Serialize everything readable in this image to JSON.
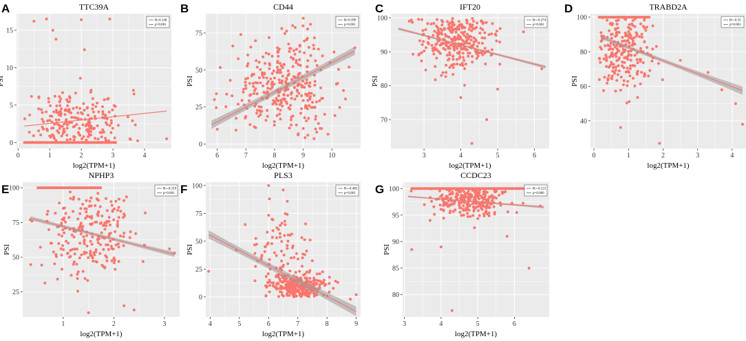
{
  "figure": {
    "x_axis_label": "log2(TPM+1)",
    "y_axis_label": "PSI",
    "legend_r_prefix": "R=",
    "legend_p_prefix": "p="
  },
  "colors": {
    "panel_bg": "#ebebeb",
    "grid": "#ffffff",
    "point": "#f8766d",
    "fit_line": "#f8766d",
    "ci_band": "#999999"
  },
  "chart_data": [
    {
      "label": "A",
      "title": "TTC39A",
      "type": "scatter",
      "xlabel": "log2(TPM+1)",
      "ylabel": "PSI",
      "xlim": [
        -0.05,
        4.85
      ],
      "ylim": [
        -0.8,
        17.2
      ],
      "xticks": [
        0,
        1,
        2,
        3,
        4
      ],
      "yticks": [
        0,
        5,
        10,
        15
      ],
      "legend": {
        "R": "0.146",
        "p": "0.001"
      },
      "fit": {
        "x": [
          0.2,
          4.7
        ],
        "y": [
          2.2,
          4.2
        ],
        "band_start": 0.6,
        "band_end": 0.6
      },
      "zero_row": {
        "y": 0,
        "x_from": 0.2,
        "x_to": 3.1
      },
      "cloud": {
        "cx": 1.8,
        "sx": 0.8,
        "cy": 2.6,
        "sy": 2.2,
        "n": 220,
        "xmin": 0.2,
        "xmax": 4.7,
        "ymin": 0.2,
        "ymax": 16.5,
        "seed": 11
      },
      "outliers": [
        [
          0.5,
          16.2
        ],
        [
          0.9,
          16.5
        ],
        [
          2.0,
          16.4
        ],
        [
          2.9,
          16.5
        ],
        [
          1.1,
          15.0
        ],
        [
          1.2,
          13.8
        ],
        [
          2.1,
          12.4
        ],
        [
          4.7,
          0.5
        ]
      ]
    },
    {
      "label": "B",
      "title": "CD44",
      "type": "scatter",
      "xlabel": "log2(TPM+1)",
      "ylabel": "PSI",
      "xlim": [
        5.6,
        11.0
      ],
      "ylim": [
        -3,
        88
      ],
      "xticks": [
        6,
        7,
        8,
        9,
        10
      ],
      "yticks": [
        0,
        25,
        50,
        75
      ],
      "legend": {
        "R": "0.399",
        "p": "0.001"
      },
      "fit": {
        "x": [
          5.8,
          10.8
        ],
        "y": [
          13,
          63
        ],
        "band_start": 6,
        "band_end": 6
      },
      "zero_row": null,
      "cloud": {
        "cx": 8.3,
        "sx": 0.85,
        "cy": 38,
        "sy": 17,
        "n": 330,
        "xmin": 5.8,
        "xmax": 10.8,
        "ymin": 0,
        "ymax": 85,
        "seed": 22
      },
      "outliers": [
        [
          9.0,
          85
        ],
        [
          6.0,
          10
        ],
        [
          10.8,
          65
        ],
        [
          10.6,
          52
        ],
        [
          5.9,
          30
        ]
      ]
    },
    {
      "label": "C",
      "title": "IFT20",
      "type": "scatter",
      "xlabel": "log2(TPM+1)",
      "ylabel": "PSI",
      "xlim": [
        2.1,
        6.4
      ],
      "ylim": [
        61.5,
        101.2
      ],
      "xticks": [
        3,
        4,
        5,
        6
      ],
      "yticks": [
        70,
        80,
        90,
        100
      ],
      "legend": {
        "R": "-0.274",
        "p": "0.001"
      },
      "fit": {
        "x": [
          2.3,
          6.3
        ],
        "y": [
          96.8,
          85.5
        ],
        "band_start": 1.8,
        "band_end": 2.3
      },
      "zero_row": null,
      "cloud": {
        "cx": 3.9,
        "sx": 0.5,
        "cy": 94,
        "sy": 4.5,
        "n": 300,
        "xmin": 2.3,
        "xmax": 6.2,
        "ymin": 75,
        "ymax": 100,
        "seed": 33
      },
      "outliers": [
        [
          4.3,
          63
        ],
        [
          4.7,
          70
        ],
        [
          2.6,
          99
        ],
        [
          6.2,
          85
        ],
        [
          4.0,
          76.5
        ],
        [
          5.0,
          79
        ]
      ]
    },
    {
      "label": "D",
      "title": "TRABD2A",
      "type": "scatter",
      "xlabel": "log2(TPM+1)",
      "ylabel": "PSI",
      "xlim": [
        -0.1,
        4.4
      ],
      "ylim": [
        24,
        102
      ],
      "xticks": [
        0,
        1,
        2,
        3,
        4
      ],
      "yticks": [
        40,
        60,
        80,
        100
      ],
      "legend": {
        "R": "-0.35",
        "p": "0.001"
      },
      "fit": {
        "x": [
          0.2,
          4.3
        ],
        "y": [
          88.5,
          57.5
        ],
        "band_start": 3,
        "band_end": 6
      },
      "zero_row": {
        "y": 100,
        "x_from": 0.15,
        "x_to": 1.6
      },
      "cloud": {
        "cx": 0.8,
        "sx": 0.5,
        "cy": 82,
        "sy": 14,
        "n": 230,
        "xmin": 0.15,
        "xmax": 4.3,
        "ymin": 35,
        "ymax": 100,
        "seed": 44
      },
      "outliers": [
        [
          1.9,
          27
        ],
        [
          4.3,
          38
        ],
        [
          3.3,
          68
        ],
        [
          3.7,
          58
        ],
        [
          2.5,
          75
        ],
        [
          4.1,
          50
        ]
      ]
    },
    {
      "label": "E",
      "title": "NPHP3",
      "type": "scatter",
      "xlabel": "log2(TPM+1)",
      "ylabel": "PSI",
      "xlim": [
        0.2,
        3.3
      ],
      "ylim": [
        7,
        104
      ],
      "xticks": [
        1,
        2,
        3
      ],
      "yticks": [
        25,
        50,
        75,
        100
      ],
      "legend": {
        "R": "-0.319",
        "p": "0.001"
      },
      "fit": {
        "x": [
          0.35,
          3.2
        ],
        "y": [
          78,
          52
        ],
        "band_start": 3,
        "band_end": 3.5
      },
      "zero_row": {
        "y": 100,
        "x_from": 0.5,
        "x_to": 1.75
      },
      "cloud": {
        "cx": 1.5,
        "sx": 0.45,
        "cy": 68,
        "sy": 16,
        "n": 240,
        "xmin": 0.35,
        "xmax": 3.2,
        "ymin": 10,
        "ymax": 99,
        "seed": 55
      },
      "outliers": [
        [
          1.5,
          10
        ],
        [
          2.4,
          12
        ],
        [
          2.2,
          15
        ],
        [
          3.2,
          53
        ],
        [
          3.1,
          56
        ],
        [
          0.35,
          77
        ]
      ]
    },
    {
      "label": "F",
      "title": "PLS3",
      "type": "scatter",
      "xlabel": "log2(TPM+1)",
      "ylabel": "PSI",
      "xlim": [
        3.85,
        9.15
      ],
      "ylim": [
        -18,
        103
      ],
      "xticks": [
        4,
        5,
        6,
        7,
        8,
        9
      ],
      "yticks": [
        0,
        25,
        50,
        75,
        100
      ],
      "legend": {
        "R": "-0.485",
        "p": "0.001"
      },
      "fit": {
        "x": [
          3.95,
          9.0
        ],
        "y": [
          56,
          -13
        ],
        "band_start": 6,
        "band_end": 7
      },
      "zero_row": null,
      "cloud": {
        "cx": 7.0,
        "sx": 0.45,
        "cy": 8,
        "sy": 6,
        "n": 280,
        "xmin": 5.6,
        "xmax": 8.9,
        "ymin": 0,
        "ymax": 35,
        "seed": 66
      },
      "cloud2": {
        "cx": 6.4,
        "sx": 0.5,
        "cy": 35,
        "sy": 20,
        "n": 90,
        "xmin": 5.0,
        "xmax": 8.3,
        "ymin": 5,
        "ymax": 100,
        "seed": 67
      },
      "outliers": [
        [
          3.95,
          23
        ],
        [
          4.9,
          42
        ],
        [
          5.2,
          65
        ],
        [
          6.0,
          100
        ],
        [
          6.5,
          96
        ],
        [
          9.0,
          2
        ],
        [
          8.8,
          -2
        ]
      ]
    },
    {
      "label": "G",
      "title": "CCDC23",
      "type": "scatter",
      "xlabel": "log2(TPM+1)",
      "ylabel": "PSI",
      "xlim": [
        2.95,
        6.95
      ],
      "ylim": [
        75.8,
        101.2
      ],
      "xticks": [
        3,
        4,
        5,
        6
      ],
      "yticks": [
        80,
        85,
        90,
        95,
        100
      ],
      "legend": {
        "R": "-0.123",
        "p": "0.006"
      },
      "fit": {
        "x": [
          3.1,
          6.8
        ],
        "y": [
          98.5,
          96.5
        ],
        "band_start": 1.2,
        "band_end": 1.8
      },
      "zero_row": {
        "y": 100,
        "x_from": 3.2,
        "x_to": 6.3
      },
      "cloud": {
        "cx": 4.8,
        "sx": 0.55,
        "cy": 97.8,
        "sy": 1.6,
        "n": 260,
        "xmin": 3.1,
        "xmax": 6.8,
        "ymin": 91,
        "ymax": 100,
        "seed": 77
      },
      "outliers": [
        [
          4.3,
          77
        ],
        [
          6.4,
          85
        ],
        [
          3.2,
          88.5
        ],
        [
          4.0,
          89
        ],
        [
          5.8,
          91
        ],
        [
          3.7,
          94
        ]
      ]
    }
  ]
}
